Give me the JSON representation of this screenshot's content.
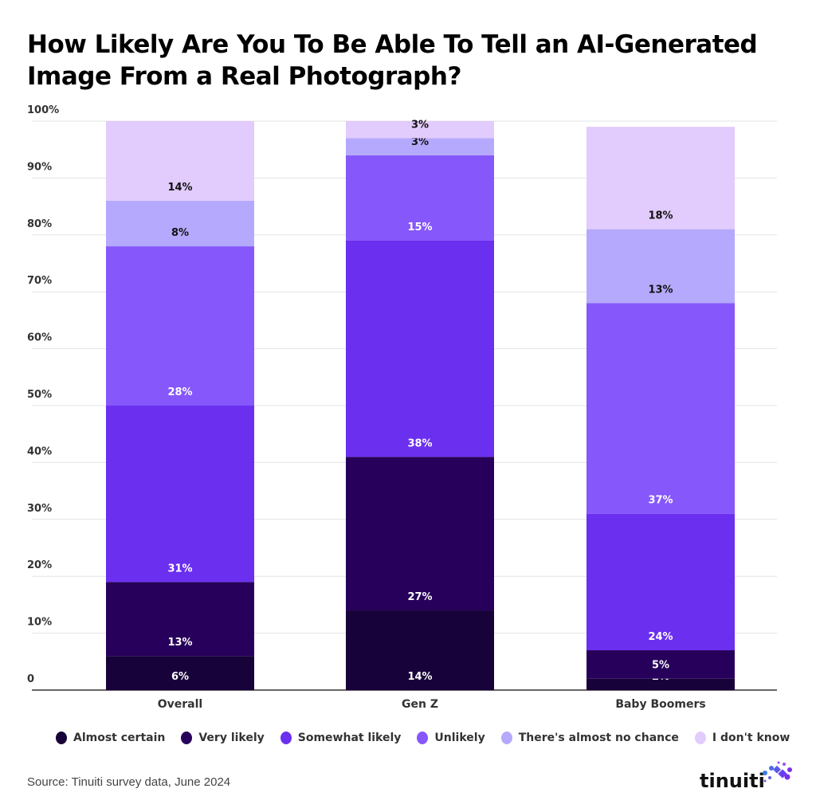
{
  "title": "How Likely Are You To Be Able To Tell an AI-Generated Image From a Real Photograph?",
  "source": "Source: Tinuiti survey data, June 2024",
  "logo_text": "tinuiti",
  "chart_data": {
    "type": "bar",
    "stacked": true,
    "title": "How Likely Are You To Be Able To Tell an AI-Generated Image From a Real Photograph?",
    "categories": [
      "Overall",
      "Gen Z",
      "Baby Boomers"
    ],
    "ylim": [
      0,
      100
    ],
    "yticks": [
      "0",
      "10%",
      "20%",
      "30%",
      "40%",
      "50%",
      "60%",
      "70%",
      "80%",
      "90%",
      "100%"
    ],
    "grid": true,
    "legend_position": "bottom",
    "series": [
      {
        "name": "Almost certain",
        "color": "#170339",
        "values": [
          6,
          14,
          2
        ]
      },
      {
        "name": "Very likely",
        "color": "#27005b",
        "values": [
          13,
          27,
          5
        ]
      },
      {
        "name": "Somewhat likely",
        "color": "#6b2ff0",
        "values": [
          31,
          38,
          24
        ]
      },
      {
        "name": "Unlikely",
        "color": "#8657fb",
        "values": [
          28,
          15,
          37
        ]
      },
      {
        "name": "There's almost no chance",
        "color": "#b5a9fd",
        "values": [
          8,
          3,
          13
        ]
      },
      {
        "name": "I don't know",
        "color": "#e2cbfd",
        "values": [
          14,
          3,
          18
        ]
      }
    ]
  }
}
